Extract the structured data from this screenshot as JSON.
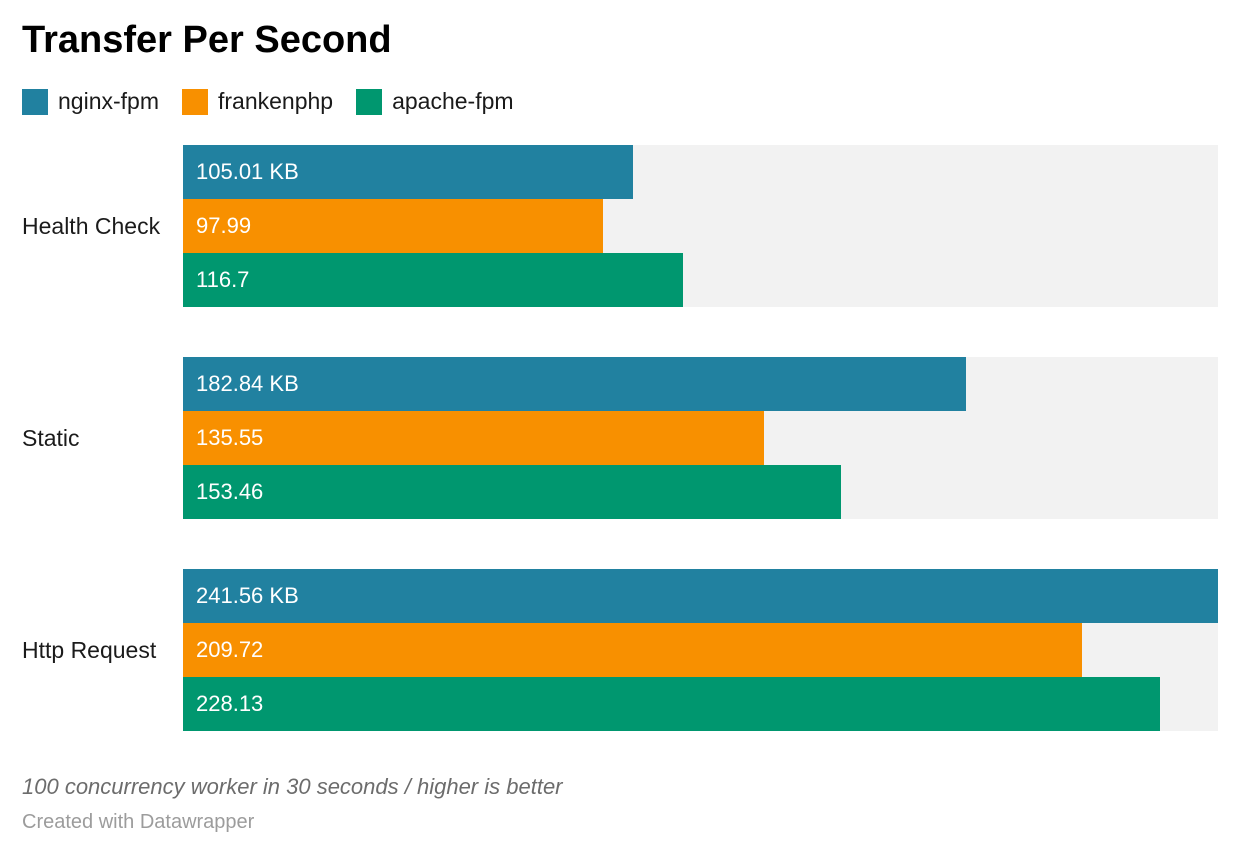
{
  "title": "Transfer Per Second",
  "legend": [
    {
      "label": "nginx-fpm",
      "color": "#2181a0",
      "icon": "legend-swatch-square"
    },
    {
      "label": "frankenphp",
      "color": "#f89000",
      "icon": "legend-swatch-square"
    },
    {
      "label": "apache-fpm",
      "color": "#00976f",
      "icon": "legend-swatch-square"
    }
  ],
  "chart_data": {
    "type": "bar",
    "orientation": "horizontal",
    "title": "Transfer Per Second",
    "unit": "KB",
    "axis_max": 241.56,
    "grid": false,
    "legend_position": "top",
    "track_color": "#f2f2f2",
    "categories": [
      "Health Check",
      "Static",
      "Http Request"
    ],
    "series": [
      {
        "name": "nginx-fpm",
        "color": "#2181a0",
        "values": [
          105.01,
          182.84,
          241.56
        ]
      },
      {
        "name": "frankenphp",
        "color": "#f89000",
        "values": [
          97.99,
          135.55,
          209.72
        ]
      },
      {
        "name": "apache-fpm",
        "color": "#00976f",
        "values": [
          116.7,
          153.46,
          228.13
        ]
      }
    ],
    "value_labels": [
      [
        "105.01 KB",
        "97.99",
        "116.7"
      ],
      [
        "182.84 KB",
        "135.55",
        "153.46"
      ],
      [
        "241.56 KB",
        "209.72",
        "228.13"
      ]
    ]
  },
  "footer": {
    "note": "100 concurrency worker in 30 seconds / higher is better",
    "credit": "Created with Datawrapper"
  }
}
